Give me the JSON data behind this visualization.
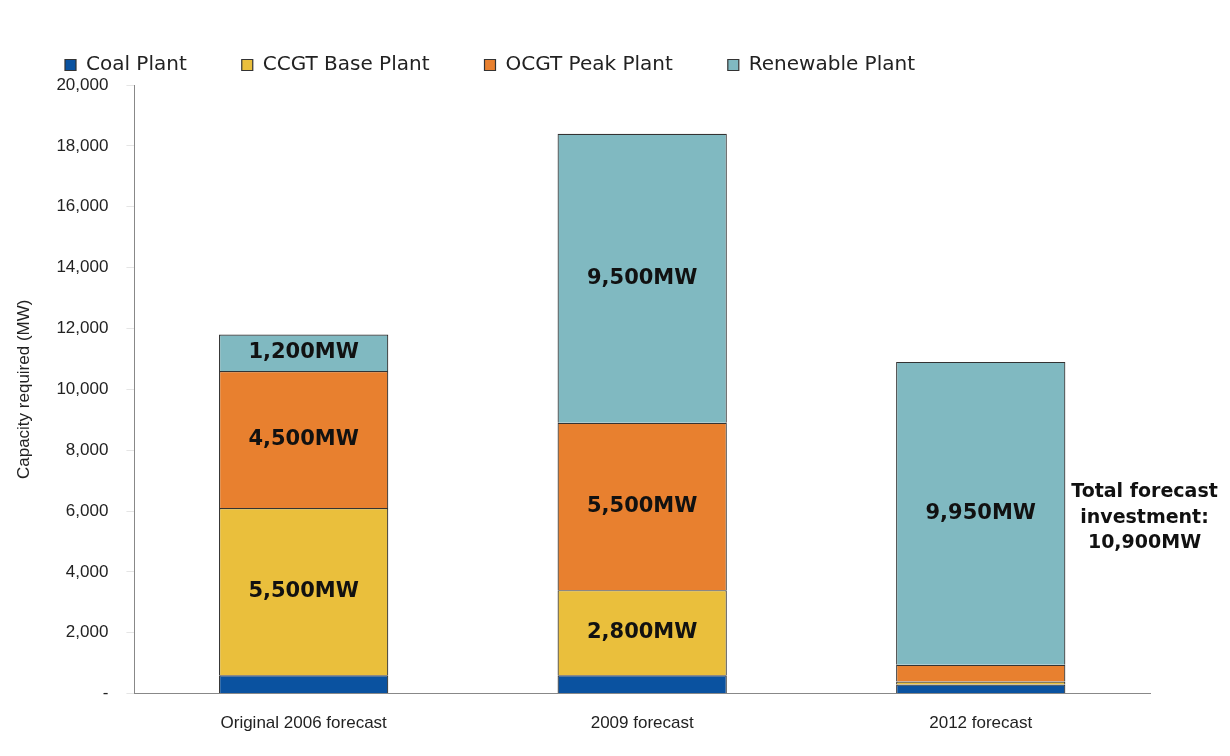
{
  "chart_data": {
    "type": "bar",
    "stacked": true,
    "ylabel": "Capacity required (MW)",
    "categories": [
      "Original 2006 forecast",
      "2009 forecast",
      "2012 forecast"
    ],
    "series": [
      {
        "name": "Coal Plant",
        "color": "#0a52a0",
        "values": [
          600,
          600,
          300
        ],
        "value_labels": [
          null,
          null,
          null
        ]
      },
      {
        "name": "CCGT Base Plant",
        "color": "#eabf3c",
        "values": [
          5500,
          2800,
          100
        ],
        "value_labels": [
          "5,500MW",
          "2,800MW",
          null
        ]
      },
      {
        "name": "OCGT Peak Plant",
        "color": "#e8802f",
        "values": [
          4500,
          5500,
          550
        ],
        "value_labels": [
          "4,500MW",
          "5,500MW",
          null
        ]
      },
      {
        "name": "Renewable Plant",
        "color": "#80b9c1",
        "values": [
          1200,
          9500,
          9950
        ],
        "value_labels": [
          "1,200MW",
          "9,500MW",
          "9,950MW"
        ]
      }
    ],
    "ylim": [
      0,
      20000
    ],
    "yticks": [
      {
        "value": 0,
        "label": "-"
      },
      {
        "value": 2000,
        "label": "2,000"
      },
      {
        "value": 4000,
        "label": "4,000"
      },
      {
        "value": 6000,
        "label": "6,000"
      },
      {
        "value": 8000,
        "label": "8,000"
      },
      {
        "value": 10000,
        "label": "10,000"
      },
      {
        "value": 12000,
        "label": "12,000"
      },
      {
        "value": 14000,
        "label": "14,000"
      },
      {
        "value": 16000,
        "label": "16,000"
      },
      {
        "value": 18000,
        "label": "18,000"
      },
      {
        "value": 20000,
        "label": "20,000"
      }
    ],
    "grid": false,
    "legend": "top left",
    "annotations": [
      "Total forecast investment: 10,900MW"
    ]
  }
}
